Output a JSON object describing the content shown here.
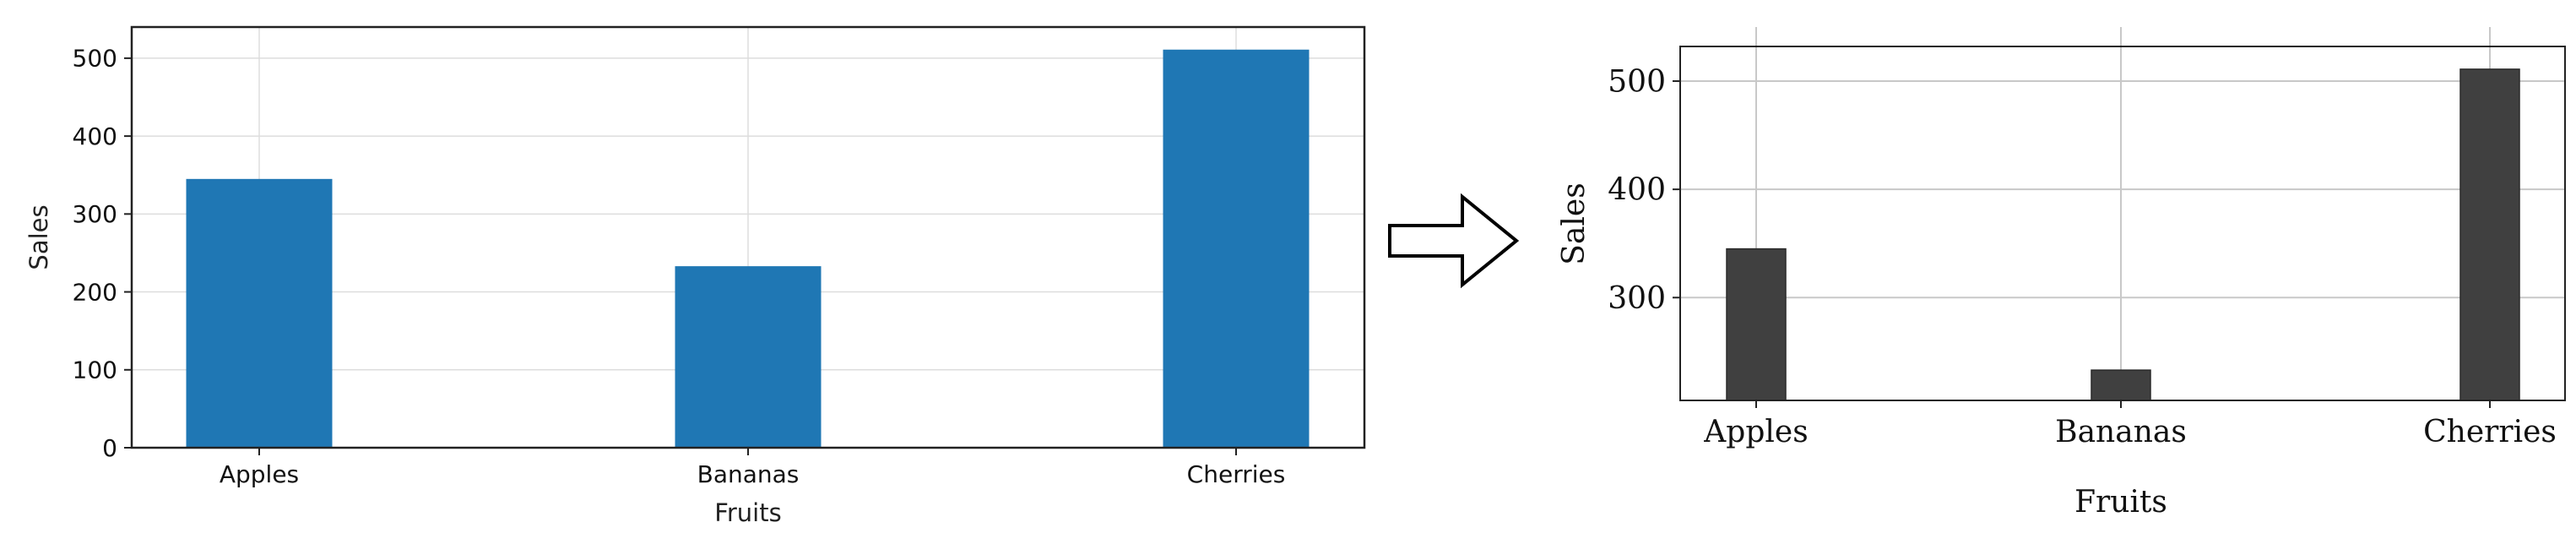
{
  "chart_data": [
    {
      "type": "bar",
      "categories": [
        "Apples",
        "Bananas",
        "Cherries"
      ],
      "values": [
        345,
        233,
        511
      ],
      "xlabel": "Fruits",
      "ylabel": "Sales",
      "ylim": [
        0,
        540
      ],
      "yticks": [
        0,
        100,
        200,
        300,
        400,
        500
      ],
      "grid": true,
      "bar_color": "#1f77b4"
    },
    {
      "type": "bar",
      "categories": [
        "Apples",
        "Bananas",
        "Cherries"
      ],
      "values": [
        345,
        233,
        511
      ],
      "xlabel": "Fruits",
      "ylabel": "Sales",
      "ylim": [
        205,
        532
      ],
      "yticks": [
        300,
        400,
        500
      ],
      "grid": true,
      "bar_color": "#404040"
    }
  ],
  "arrow": {
    "icon": "right-arrow-icon"
  }
}
